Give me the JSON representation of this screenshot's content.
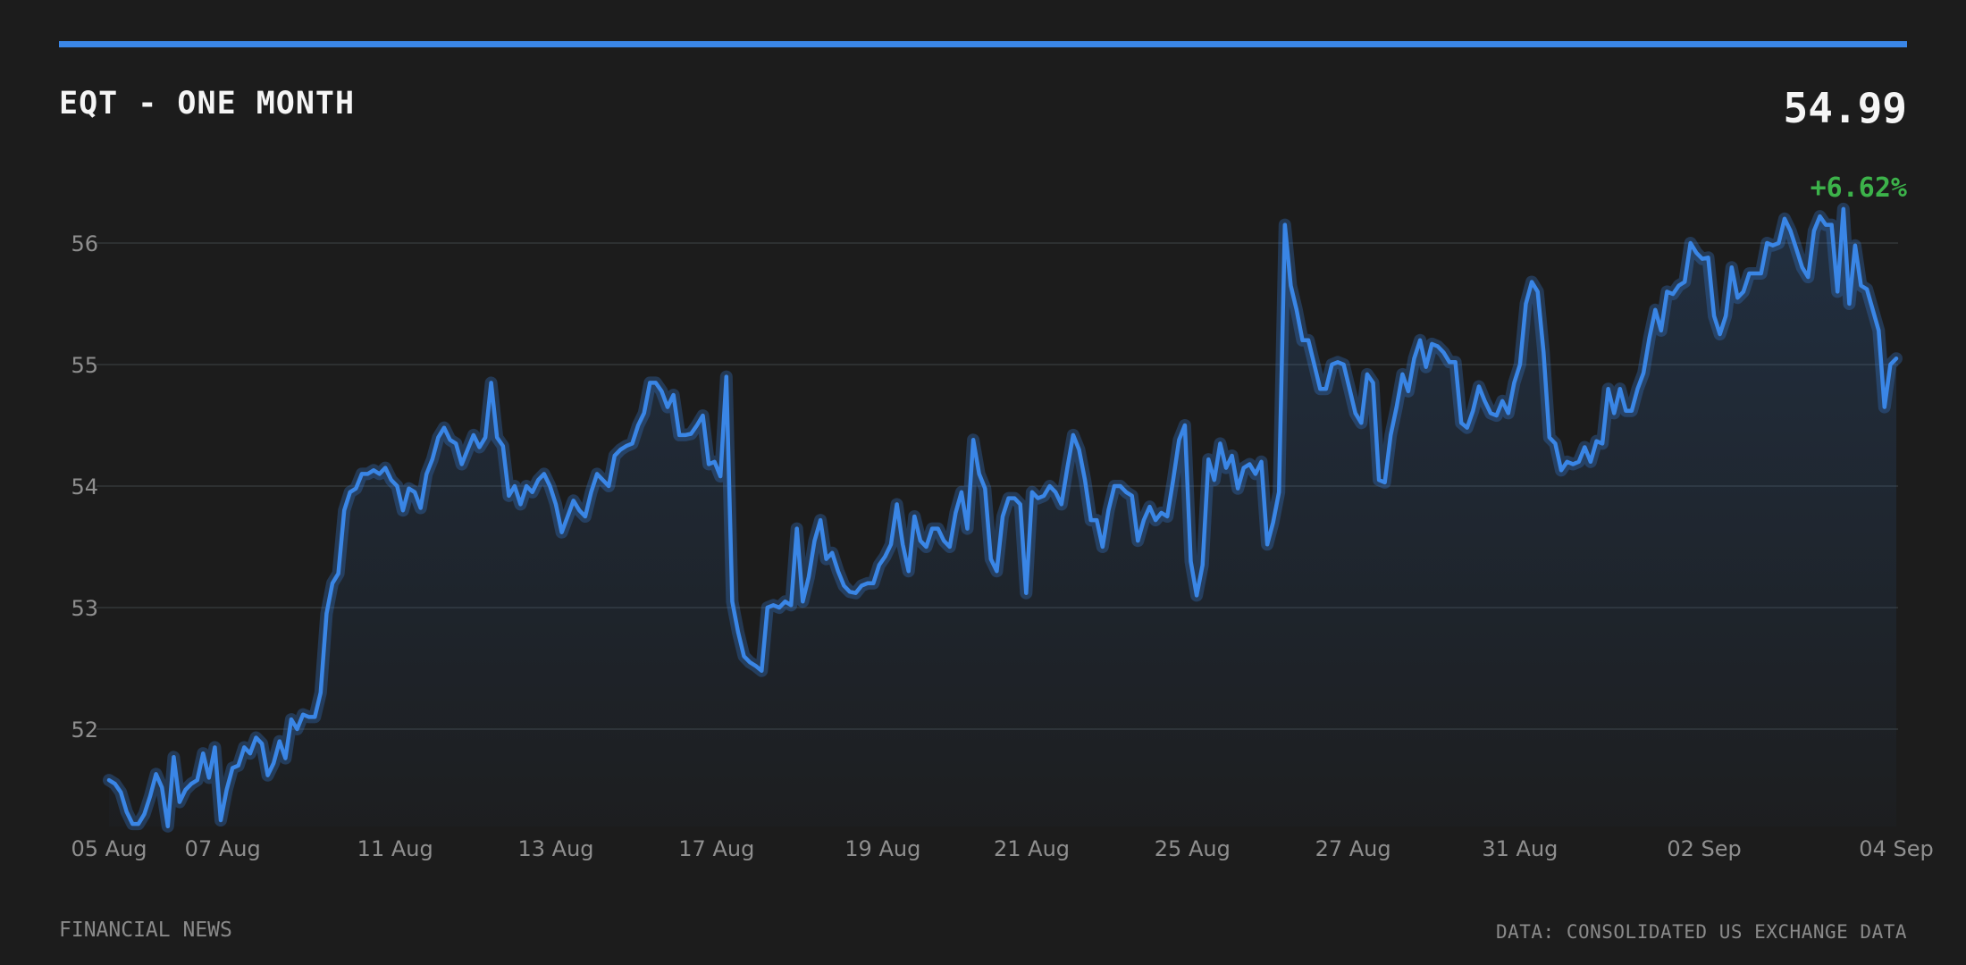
{
  "header": {
    "title": "EQT - ONE MONTH",
    "price": "54.99",
    "change": "+6.62%"
  },
  "footer": {
    "left": "FINANCIAL NEWS",
    "right": "DATA: CONSOLIDATED US EXCHANGE DATA"
  },
  "colors": {
    "accent": "#3a86e6",
    "positive": "#3cb24a",
    "background": "#1c1c1c"
  },
  "chart_data": {
    "type": "area",
    "title": "EQT - ONE MONTH",
    "xlabel": "",
    "ylabel": "",
    "ylim": [
      51.2,
      56.5
    ],
    "yticks": [
      52,
      53,
      54,
      55,
      56
    ],
    "grid": true,
    "x_tick_labels": [
      "05 Aug",
      "07 Aug",
      "11 Aug",
      "13 Aug",
      "17 Aug",
      "19 Aug",
      "21 Aug",
      "25 Aug",
      "27 Aug",
      "31 Aug",
      "02 Sep",
      "04 Sep"
    ],
    "x_tick_positions": [
      0,
      14.5,
      36.5,
      57,
      77.5,
      98.7,
      117.7,
      138.2,
      158.7,
      180,
      203.5,
      228
    ],
    "x_max": 228,
    "series": [
      {
        "values": [
          51.58,
          51.55,
          51.48,
          51.32,
          51.22,
          51.22,
          51.3,
          51.45,
          51.63,
          51.52,
          51.2,
          51.77,
          51.4,
          51.5,
          51.55,
          51.58,
          51.8,
          51.6,
          51.85,
          51.25,
          51.5,
          51.68,
          51.7,
          51.85,
          51.8,
          51.93,
          51.88,
          51.62,
          51.72,
          51.9,
          51.76,
          52.08,
          52.0,
          52.12,
          52.1,
          52.1,
          52.3,
          52.95,
          53.2,
          53.28,
          53.8,
          53.95,
          53.98,
          54.1,
          54.1,
          54.13,
          54.1,
          54.15,
          54.05,
          54.0,
          53.8,
          53.98,
          53.95,
          53.82,
          54.1,
          54.22,
          54.4,
          54.48,
          54.38,
          54.35,
          54.18,
          54.3,
          54.42,
          54.32,
          54.4,
          54.85,
          54.4,
          54.33,
          53.92,
          54.0,
          53.85,
          54.0,
          53.95,
          54.05,
          54.1,
          54.0,
          53.85,
          53.62,
          53.75,
          53.88,
          53.8,
          53.75,
          53.95,
          54.1,
          54.05,
          54.0,
          54.25,
          54.3,
          54.33,
          54.35,
          54.5,
          54.6,
          54.85,
          54.85,
          54.78,
          54.65,
          54.75,
          54.42,
          54.42,
          54.43,
          54.5,
          54.58,
          54.18,
          54.2,
          54.08,
          54.9,
          53.05,
          52.8,
          52.6,
          52.55,
          52.52,
          52.48,
          53.0,
          53.02,
          53.0,
          53.05,
          53.02,
          53.65,
          53.05,
          53.25,
          53.55,
          53.72,
          53.4,
          53.45,
          53.3,
          53.18,
          53.13,
          53.12,
          53.18,
          53.2,
          53.2,
          53.35,
          53.42,
          53.52,
          53.85,
          53.52,
          53.3,
          53.75,
          53.55,
          53.5,
          53.65,
          53.65,
          53.55,
          53.5,
          53.78,
          53.95,
          53.65,
          54.38,
          54.1,
          53.98,
          53.4,
          53.3,
          53.75,
          53.9,
          53.9,
          53.85,
          53.12,
          53.95,
          53.9,
          53.92,
          54.0,
          53.95,
          53.85,
          54.15,
          54.42,
          54.3,
          54.05,
          53.72,
          53.72,
          53.5,
          53.8,
          54.0,
          54.0,
          53.95,
          53.92,
          53.55,
          53.72,
          53.83,
          53.72,
          53.78,
          53.75,
          54.05,
          54.38,
          54.5,
          53.38,
          53.1,
          53.35,
          54.22,
          54.05,
          54.35,
          54.15,
          54.25,
          53.98,
          54.15,
          54.18,
          54.1,
          54.2,
          53.52,
          53.7,
          53.95,
          56.15,
          55.65,
          55.45,
          55.2,
          55.2,
          55.0,
          54.8,
          54.8,
          55.0,
          55.02,
          55.0,
          54.8,
          54.6,
          54.52,
          54.92,
          54.85,
          54.05,
          54.03,
          54.42,
          54.65,
          54.92,
          54.78,
          55.05,
          55.2,
          54.98,
          55.17,
          55.15,
          55.1,
          55.02,
          55.02,
          54.52,
          54.48,
          54.62,
          54.82,
          54.7,
          54.6,
          54.58,
          54.7,
          54.6,
          54.85,
          55.0,
          55.5,
          55.68,
          55.6,
          55.1,
          54.4,
          54.35,
          54.13,
          54.2,
          54.18,
          54.2,
          54.32,
          54.2,
          54.37,
          54.35,
          54.8,
          54.6,
          54.8,
          54.62,
          54.62,
          54.8,
          54.93,
          55.22,
          55.45,
          55.28,
          55.6,
          55.58,
          55.65,
          55.68,
          56.0,
          55.92,
          55.87,
          55.88,
          55.4,
          55.25,
          55.4,
          55.8,
          55.55,
          55.6,
          55.75,
          55.75,
          55.75,
          56.0,
          55.98,
          56.0,
          56.2,
          56.1,
          55.95,
          55.8,
          55.72,
          56.1,
          56.22,
          56.15,
          56.15,
          55.6,
          56.28,
          55.5,
          55.98,
          55.65,
          55.62,
          55.45,
          55.28,
          54.65,
          55.0,
          55.05
        ]
      }
    ]
  }
}
